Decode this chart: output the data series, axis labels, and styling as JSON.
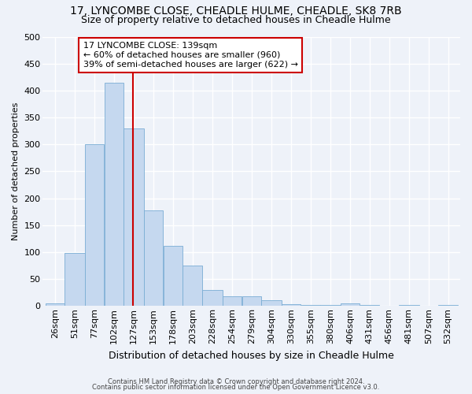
{
  "title1": "17, LYNCOMBE CLOSE, CHEADLE HULME, CHEADLE, SK8 7RB",
  "title2": "Size of property relative to detached houses in Cheadle Hulme",
  "xlabel": "Distribution of detached houses by size in Cheadle Hulme",
  "ylabel": "Number of detached properties",
  "footer1": "Contains HM Land Registry data © Crown copyright and database right 2024.",
  "footer2": "Contains public sector information licensed under the Open Government Licence v3.0.",
  "bin_labels": [
    "26sqm",
    "51sqm",
    "77sqm",
    "102sqm",
    "127sqm",
    "153sqm",
    "178sqm",
    "203sqm",
    "228sqm",
    "254sqm",
    "279sqm",
    "304sqm",
    "330sqm",
    "355sqm",
    "380sqm",
    "406sqm",
    "431sqm",
    "456sqm",
    "481sqm",
    "507sqm",
    "532sqm"
  ],
  "bin_edges": [
    26,
    51,
    77,
    102,
    127,
    153,
    178,
    203,
    228,
    254,
    279,
    304,
    330,
    355,
    380,
    406,
    431,
    456,
    481,
    507,
    532,
    557
  ],
  "values": [
    5,
    98,
    301,
    415,
    330,
    178,
    111,
    75,
    30,
    18,
    18,
    10,
    3,
    2,
    2,
    5,
    2,
    0,
    2,
    0,
    2
  ],
  "bar_color": "#c5d8ef",
  "bar_edge_color": "#7aadd4",
  "vline_x": 139,
  "vline_color": "#cc0000",
  "annotation_text": "17 LYNCOMBE CLOSE: 139sqm\n← 60% of detached houses are smaller (960)\n39% of semi-detached houses are larger (622) →",
  "annotation_box_color": "#ffffff",
  "annotation_box_edge": "#cc0000",
  "ylim": [
    0,
    500
  ],
  "background_color": "#eef2f9",
  "plot_background": "#eef2f9",
  "grid_color": "#ffffff",
  "title1_fontsize": 10,
  "title2_fontsize": 9,
  "ylabel_fontsize": 8,
  "xlabel_fontsize": 9
}
